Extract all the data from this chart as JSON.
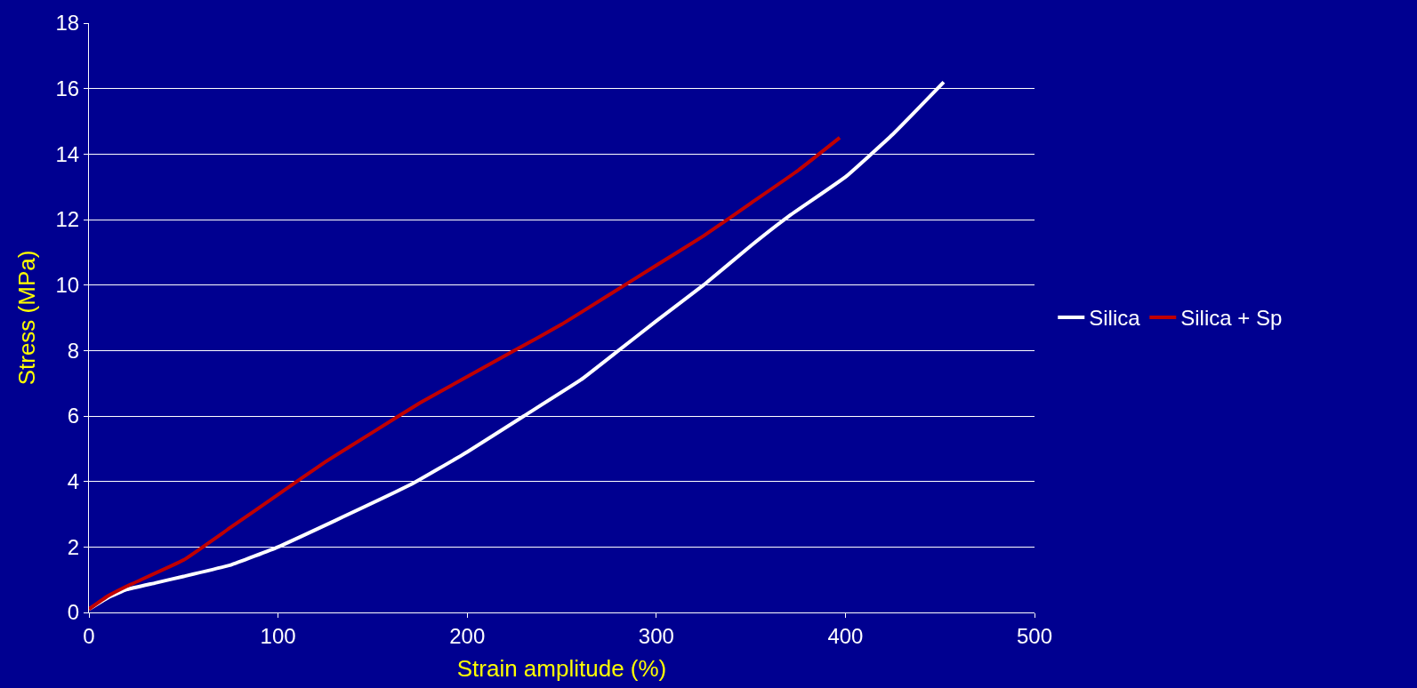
{
  "chart_data": {
    "type": "line",
    "xlabel": "Strain amplitude (%)",
    "ylabel": "Stress (MPa)",
    "xlim": [
      0,
      500
    ],
    "xticks": [
      0,
      100,
      200,
      300,
      400,
      500
    ],
    "ylim": [
      0,
      18
    ],
    "yticks": [
      0,
      2,
      4,
      6,
      8,
      10,
      12,
      14,
      16,
      18
    ],
    "grid": "y",
    "legend": "right",
    "marker": "none",
    "line_style": "solid",
    "series": [
      {
        "name": "Silica",
        "color": "#ffffff",
        "x": [
          0,
          10,
          20,
          35,
          50,
          75,
          100,
          130,
          170,
          200,
          230,
          260,
          280,
          300,
          325,
          350,
          370,
          400,
          425,
          452
        ],
        "values": [
          0.1,
          0.45,
          0.7,
          0.9,
          1.1,
          1.45,
          2.0,
          2.8,
          3.9,
          4.9,
          6.0,
          7.1,
          8.0,
          8.9,
          10.0,
          11.2,
          12.1,
          13.3,
          14.6,
          16.2
        ]
      },
      {
        "name": "Silica + Sp",
        "color": "#c00000",
        "x": [
          0,
          10,
          20,
          50,
          75,
          100,
          125,
          150,
          175,
          200,
          225,
          250,
          275,
          300,
          325,
          350,
          375,
          397
        ],
        "values": [
          0.1,
          0.5,
          0.8,
          1.6,
          2.6,
          3.6,
          4.6,
          5.5,
          6.4,
          7.2,
          8.0,
          8.8,
          9.7,
          10.6,
          11.5,
          12.5,
          13.5,
          14.5
        ]
      }
    ]
  }
}
